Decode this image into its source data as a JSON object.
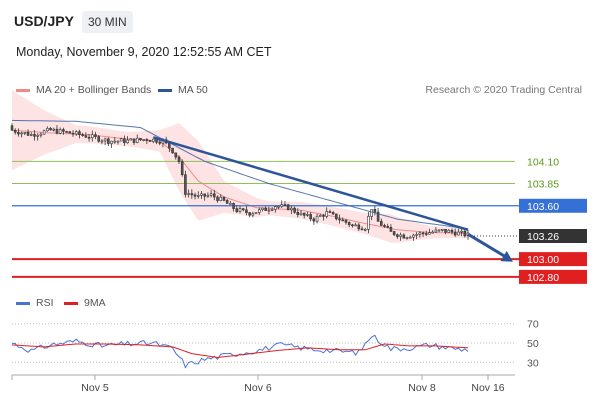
{
  "header": {
    "symbol": "USD/JPY",
    "interval": "30 MIN",
    "timestamp": "Monday, November 9, 2020 12:52:55 AM CET",
    "copyright": "Research © 2020 Trading Central"
  },
  "colors": {
    "bollinger": "#f08a8a",
    "bollinger_fill": "#fde3e3",
    "ma50": "#2e5597",
    "bull_candle": "#ffffff",
    "bear_candle": "#555555",
    "green_level": "#8fbf5a",
    "blue_level": "#3570d6",
    "red_level": "#e02020",
    "trendline": "#2e5597",
    "rsi": "#4a72d6",
    "rsi_ma": "#e02020",
    "last_price_label": "#333333"
  },
  "chart_data": [
    {
      "type": "candlestick",
      "legend": [
        {
          "name": "MA 20 + Bollinger Bands",
          "color": "#f08a8a"
        },
        {
          "name": "MA 50",
          "color": "#2e5597"
        }
      ],
      "ylim": [
        102.72,
        104.7
      ],
      "levels": [
        {
          "value": 104.1,
          "label": "104.10",
          "style": "green-line"
        },
        {
          "value": 103.85,
          "label": "103.85",
          "style": "green-line"
        },
        {
          "value": 103.6,
          "label": "103.60",
          "style": "blue-box"
        },
        {
          "value": 103.26,
          "label": "103.26",
          "style": "last-price"
        },
        {
          "value": 103.0,
          "label": "103.00",
          "style": "red-box"
        },
        {
          "value": 102.8,
          "label": "102.80",
          "style": "red-box"
        }
      ],
      "x_labels": [
        "Nov 5",
        "Nov 6",
        "Nov 8",
        "Nov 16"
      ],
      "close_anchors": [
        [
          0,
          104.45
        ],
        [
          6,
          104.4
        ],
        [
          12,
          104.45
        ],
        [
          18,
          104.42
        ],
        [
          24,
          104.38
        ],
        [
          30,
          104.33
        ],
        [
          36,
          104.33
        ],
        [
          42,
          104.35
        ],
        [
          47,
          104.33
        ],
        [
          50,
          104.22
        ],
        [
          52,
          104.1
        ],
        [
          54,
          103.75
        ],
        [
          58,
          103.7
        ],
        [
          62,
          103.72
        ],
        [
          66,
          103.65
        ],
        [
          70,
          103.55
        ],
        [
          74,
          103.52
        ],
        [
          78,
          103.55
        ],
        [
          82,
          103.6
        ],
        [
          86,
          103.58
        ],
        [
          90,
          103.5
        ],
        [
          94,
          103.45
        ],
        [
          98,
          103.52
        ],
        [
          102,
          103.45
        ],
        [
          106,
          103.38
        ],
        [
          110,
          103.36
        ],
        [
          112,
          103.58
        ],
        [
          114,
          103.42
        ],
        [
          118,
          103.3
        ],
        [
          122,
          103.26
        ],
        [
          126,
          103.28
        ],
        [
          130,
          103.3
        ],
        [
          134,
          103.32
        ],
        [
          138,
          103.3
        ],
        [
          142,
          103.27
        ]
      ],
      "ma50_anchors": [
        [
          0,
          104.56
        ],
        [
          20,
          104.55
        ],
        [
          40,
          104.48
        ],
        [
          60,
          104.1
        ],
        [
          80,
          103.85
        ],
        [
          100,
          103.65
        ],
        [
          120,
          103.45
        ],
        [
          142,
          103.34
        ]
      ],
      "bb_mid_anchors": [
        [
          0,
          104.45
        ],
        [
          12,
          104.42
        ],
        [
          24,
          104.4
        ],
        [
          36,
          104.35
        ],
        [
          46,
          104.33
        ],
        [
          52,
          104.15
        ],
        [
          58,
          103.88
        ],
        [
          66,
          103.7
        ],
        [
          76,
          103.58
        ],
        [
          90,
          103.55
        ],
        [
          100,
          103.48
        ],
        [
          110,
          103.4
        ],
        [
          120,
          103.33
        ],
        [
          130,
          103.3
        ],
        [
          142,
          103.29
        ]
      ],
      "bb_width_anchors": [
        [
          0,
          0.45
        ],
        [
          10,
          0.25
        ],
        [
          20,
          0.1
        ],
        [
          36,
          0.08
        ],
        [
          46,
          0.12
        ],
        [
          52,
          0.38
        ],
        [
          58,
          0.45
        ],
        [
          66,
          0.18
        ],
        [
          80,
          0.08
        ],
        [
          95,
          0.1
        ],
        [
          110,
          0.12
        ],
        [
          118,
          0.16
        ],
        [
          130,
          0.07
        ],
        [
          142,
          0.05
        ]
      ],
      "trendline": {
        "from": [
          44,
          104.37
        ],
        "to": [
          142,
          103.33
        ]
      },
      "projection": {
        "from": [
          142,
          103.28
        ],
        "to": [
          156,
          102.97
        ]
      }
    },
    {
      "type": "line",
      "title": "RSI",
      "legend": [
        {
          "name": "RSI",
          "color": "#4a72d6"
        },
        {
          "name": "9MA",
          "color": "#e02020"
        }
      ],
      "ylim": [
        22,
        78
      ],
      "y_ticks": [
        70,
        50,
        30
      ],
      "y_tick_labels": [
        "70",
        "50",
        "30"
      ],
      "rsi_anchors": [
        [
          0,
          50
        ],
        [
          6,
          42
        ],
        [
          12,
          48
        ],
        [
          20,
          52
        ],
        [
          28,
          47
        ],
        [
          36,
          49
        ],
        [
          44,
          50
        ],
        [
          50,
          44
        ],
        [
          54,
          27
        ],
        [
          60,
          33
        ],
        [
          68,
          38
        ],
        [
          76,
          42
        ],
        [
          84,
          48
        ],
        [
          92,
          44
        ],
        [
          100,
          42
        ],
        [
          108,
          40
        ],
        [
          112,
          58
        ],
        [
          118,
          44
        ],
        [
          124,
          45
        ],
        [
          130,
          48
        ],
        [
          136,
          45
        ],
        [
          142,
          43
        ]
      ],
      "rsi_ma_anchors": [
        [
          0,
          48
        ],
        [
          10,
          46
        ],
        [
          20,
          49
        ],
        [
          30,
          49
        ],
        [
          40,
          48
        ],
        [
          50,
          46
        ],
        [
          56,
          39
        ],
        [
          64,
          35
        ],
        [
          72,
          38
        ],
        [
          82,
          42
        ],
        [
          92,
          45
        ],
        [
          102,
          43
        ],
        [
          110,
          43
        ],
        [
          116,
          49
        ],
        [
          124,
          47
        ],
        [
          132,
          47
        ],
        [
          142,
          45
        ]
      ]
    }
  ]
}
